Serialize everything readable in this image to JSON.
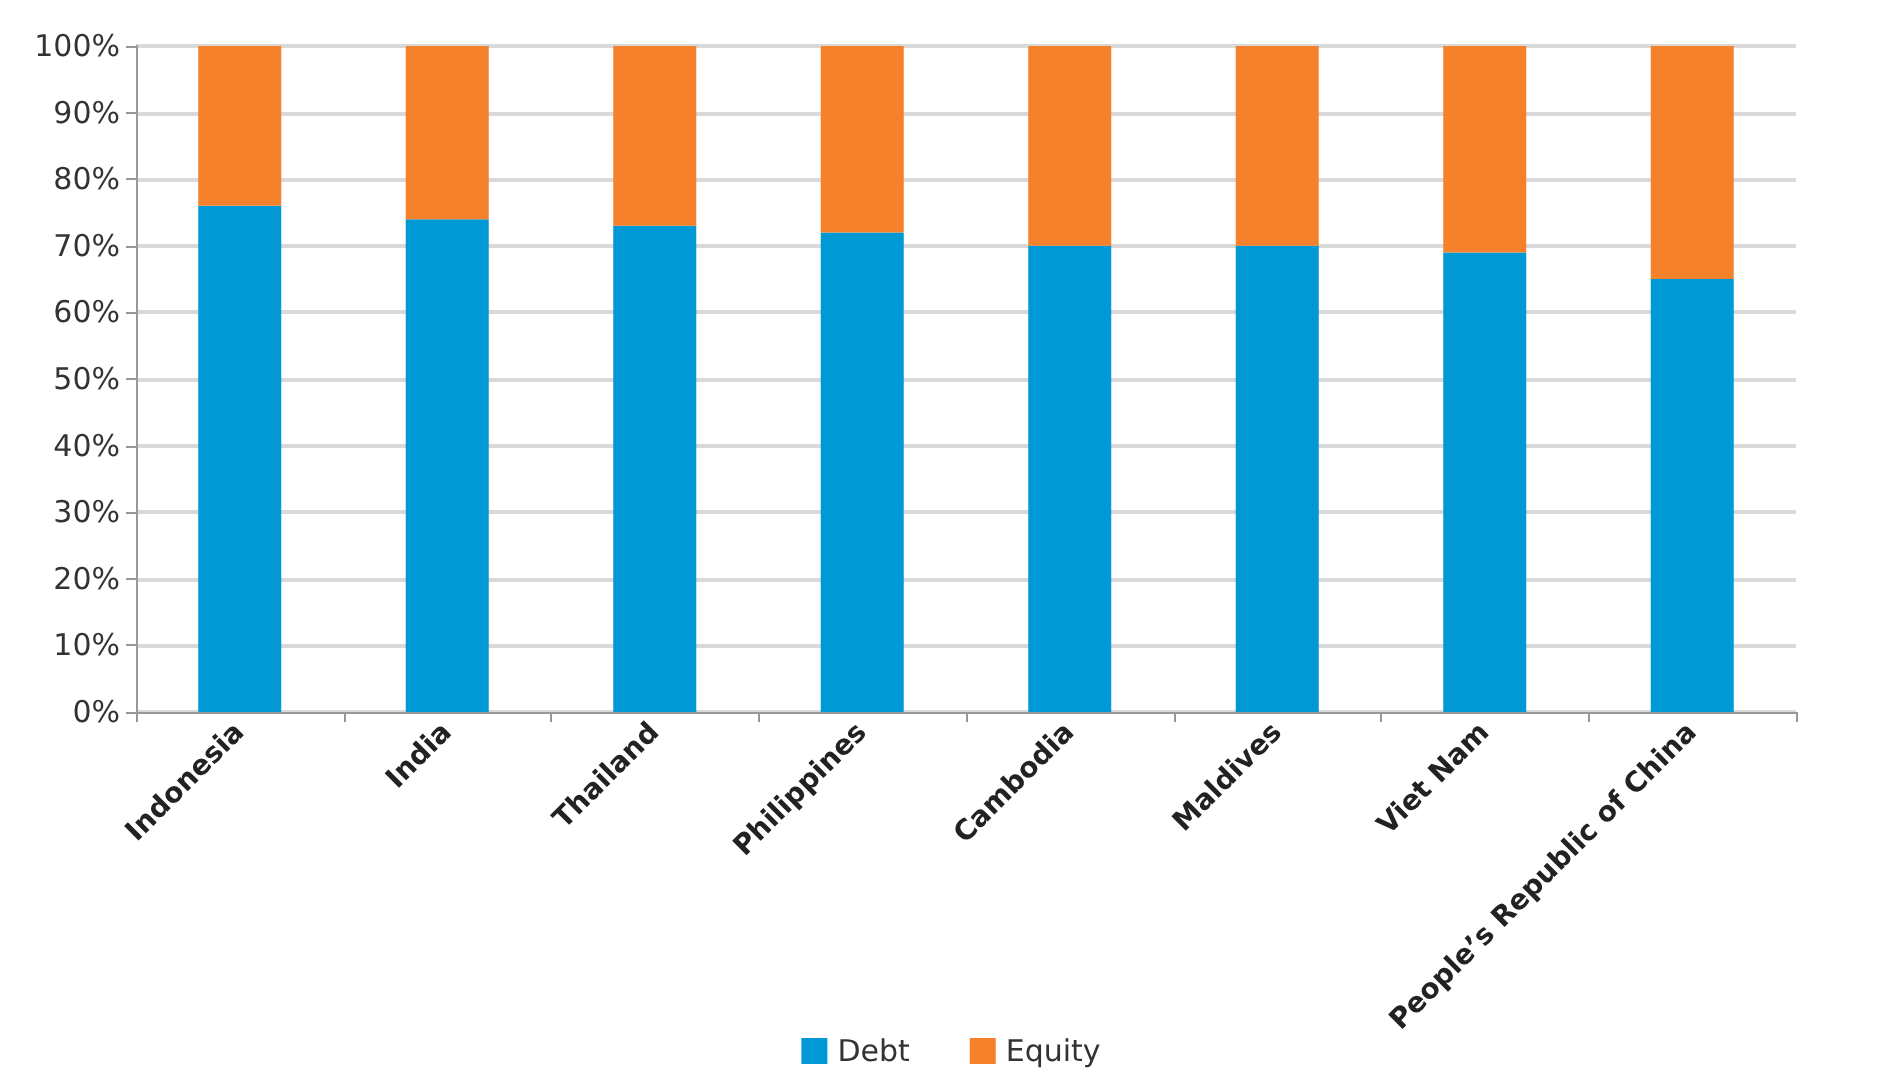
{
  "chart_data": {
    "type": "bar",
    "stacked": true,
    "categories": [
      "Indonesia",
      "India",
      "Thailand",
      "Philippines",
      "Cambodia",
      "Maldives",
      "Viet Nam",
      "People’s Republic of China"
    ],
    "series": [
      {
        "name": "Debt",
        "color": "#0099d6",
        "values": [
          76,
          74,
          73,
          72,
          70,
          70,
          69,
          65
        ]
      },
      {
        "name": "Equity",
        "color": "#f5822a",
        "values": [
          24,
          26,
          27,
          28,
          30,
          30,
          31,
          35
        ]
      }
    ],
    "ylim": [
      0,
      100
    ],
    "yticks": [
      {
        "value": 0,
        "label": "0%"
      },
      {
        "value": 10,
        "label": "10%"
      },
      {
        "value": 20,
        "label": "20%"
      },
      {
        "value": 30,
        "label": "30%"
      },
      {
        "value": 40,
        "label": "40%"
      },
      {
        "value": 50,
        "label": "50%"
      },
      {
        "value": 60,
        "label": "60%"
      },
      {
        "value": 70,
        "label": "70%"
      },
      {
        "value": 80,
        "label": "80%"
      },
      {
        "value": 90,
        "label": "90%"
      },
      {
        "value": 100,
        "label": "100%"
      }
    ],
    "grid": "y",
    "legend": "bottom"
  }
}
